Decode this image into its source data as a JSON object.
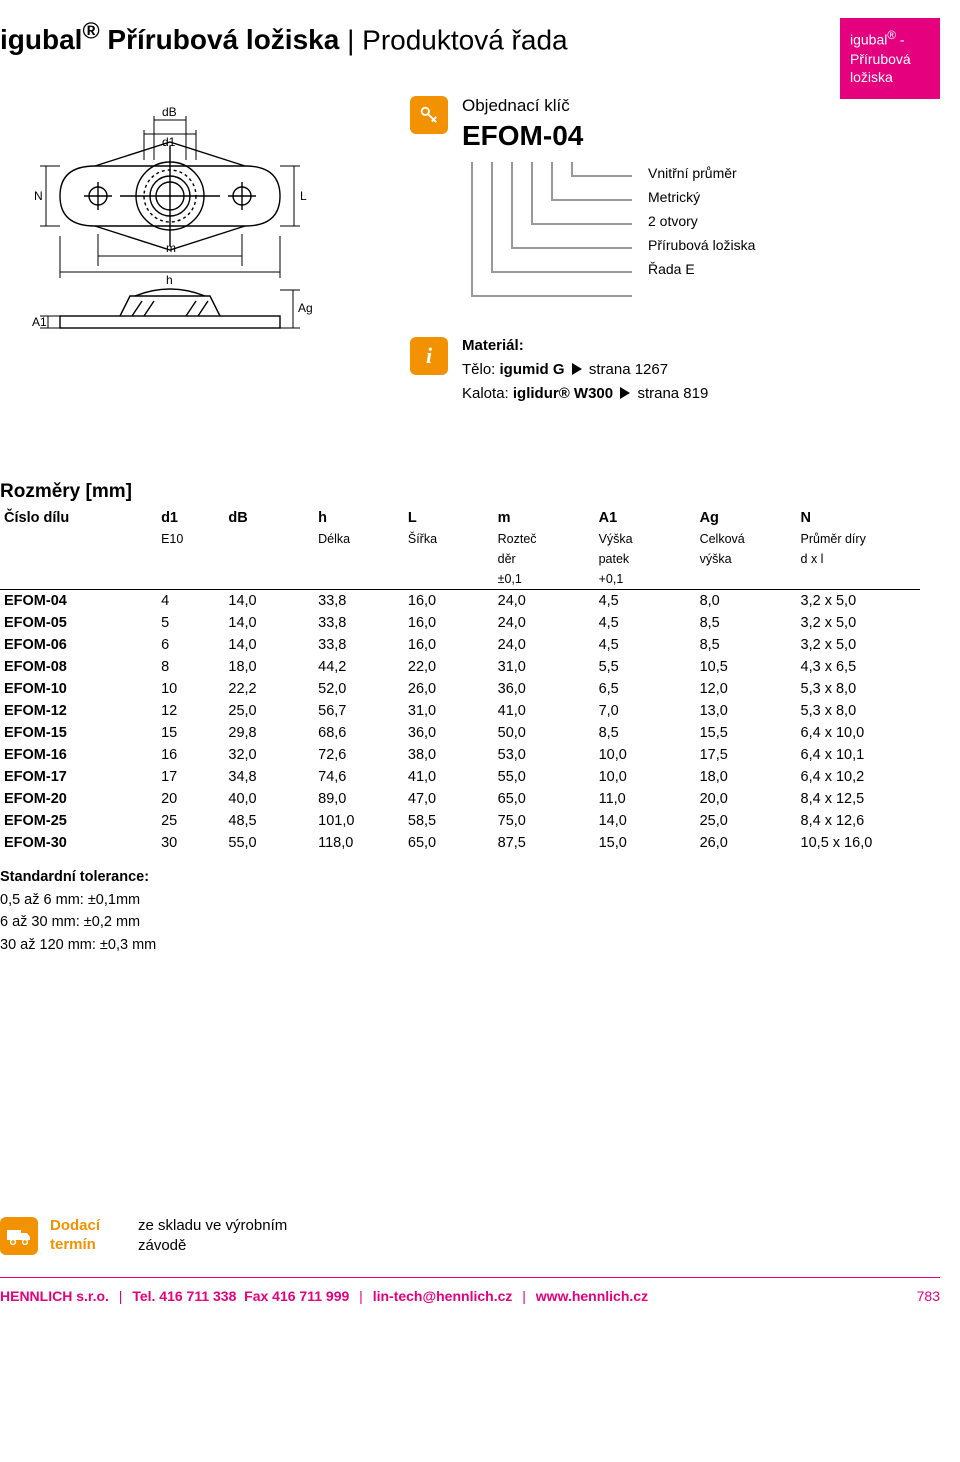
{
  "title": {
    "brand": "igubal",
    "reg": "®",
    "bold_suffix": " Přírubová ložiska",
    "light_suffix": "Produktová řada"
  },
  "side_tab": {
    "l1": "igubal",
    "reg": "®",
    "l1b": " -",
    "l2": "Přírubová",
    "l3": "ložiska"
  },
  "diagram": {
    "labels": {
      "dB": "dB",
      "d1": "d1",
      "N": "N",
      "L": "L",
      "m": "m",
      "h": "h",
      "A1": "A1",
      "Ag": "Ag"
    }
  },
  "order_key": {
    "label": "Objednací klíč",
    "code": "EFOM-04",
    "levels": [
      "Vnitřní průměr",
      "Metrický",
      "2 otvory",
      "Přírubová ložiska",
      "Řada E"
    ]
  },
  "material": {
    "title": "Materiál:",
    "lines": [
      {
        "pre": "Tělo: ",
        "bold": "igumid G",
        "post": " strana 1267"
      },
      {
        "pre": "Kalota: ",
        "bold": "iglidur® W300",
        "post": " strana 819"
      }
    ]
  },
  "table": {
    "title": "Rozměry [mm]",
    "header": {
      "cols": [
        "Číslo dílu",
        "d1",
        "dB",
        "h",
        "L",
        "m",
        "A1",
        "Ag",
        "N"
      ],
      "sub": [
        "",
        "E10",
        "",
        "Délka",
        "Šířka",
        "Rozteč",
        "Výška",
        "Celková",
        "Průměr díry"
      ],
      "sub2": [
        "",
        "",
        "",
        "",
        "",
        "děr",
        "patek",
        "výška",
        "d x l"
      ],
      "sub3": [
        "",
        "",
        "",
        "",
        "",
        "±0,1",
        "+0,1",
        "",
        ""
      ]
    },
    "rows": [
      [
        "EFOM-04",
        "4",
        "14,0",
        "33,8",
        "16,0",
        "24,0",
        "4,5",
        "8,0",
        "3,2 x 5,0"
      ],
      [
        "EFOM-05",
        "5",
        "14,0",
        "33,8",
        "16,0",
        "24,0",
        "4,5",
        "8,5",
        "3,2 x 5,0"
      ],
      [
        "EFOM-06",
        "6",
        "14,0",
        "33,8",
        "16,0",
        "24,0",
        "4,5",
        "8,5",
        "3,2 x 5,0"
      ],
      [
        "EFOM-08",
        "8",
        "18,0",
        "44,2",
        "22,0",
        "31,0",
        "5,5",
        "10,5",
        "4,3 x 6,5"
      ],
      [
        "EFOM-10",
        "10",
        "22,2",
        "52,0",
        "26,0",
        "36,0",
        "6,5",
        "12,0",
        "5,3 x 8,0"
      ],
      [
        "EFOM-12",
        "12",
        "25,0",
        "56,7",
        "31,0",
        "41,0",
        "7,0",
        "13,0",
        "5,3 x 8,0"
      ],
      [
        "EFOM-15",
        "15",
        "29,8",
        "68,6",
        "36,0",
        "50,0",
        "8,5",
        "15,5",
        "6,4 x 10,0"
      ],
      [
        "EFOM-16",
        "16",
        "32,0",
        "72,6",
        "38,0",
        "53,0",
        "10,0",
        "17,5",
        "6,4 x 10,1"
      ],
      [
        "EFOM-17",
        "17",
        "34,8",
        "74,6",
        "41,0",
        "55,0",
        "10,0",
        "18,0",
        "6,4 x 10,2"
      ],
      [
        "EFOM-20",
        "20",
        "40,0",
        "89,0",
        "47,0",
        "65,0",
        "11,0",
        "20,0",
        "8,4 x 12,5"
      ],
      [
        "EFOM-25",
        "25",
        "48,5",
        "101,0",
        "58,5",
        "75,0",
        "14,0",
        "25,0",
        "8,4 x 12,6"
      ],
      [
        "EFOM-30",
        "30",
        "55,0",
        "118,0",
        "65,0",
        "87,5",
        "15,0",
        "26,0",
        "10,5 x 16,0"
      ]
    ],
    "col_widths": [
      "140px",
      "60px",
      "80px",
      "80px",
      "80px",
      "90px",
      "90px",
      "90px",
      "110px"
    ]
  },
  "tolerance": {
    "label": "Standardní tolerance:",
    "lines": [
      "0,5 až 6 mm: ±0,1mm",
      "6 až 30 mm: ±0,2 mm",
      "30 až 120 mm: ±0,3 mm"
    ]
  },
  "delivery": {
    "label1": "Dodací",
    "label2": "termín",
    "text1": "ze skladu ve výrobním",
    "text2": "závodě"
  },
  "footer": {
    "company": "HENNLICH s.r.o.",
    "tel": "Tel. 416 711 338",
    "fax": "Fax 416 711 999",
    "email": "lin-tech@hennlich.cz",
    "web": "www.hennlich.cz",
    "page": "783"
  },
  "colors": {
    "accent_orange": "#f39200",
    "accent_pink": "#e5007d"
  }
}
